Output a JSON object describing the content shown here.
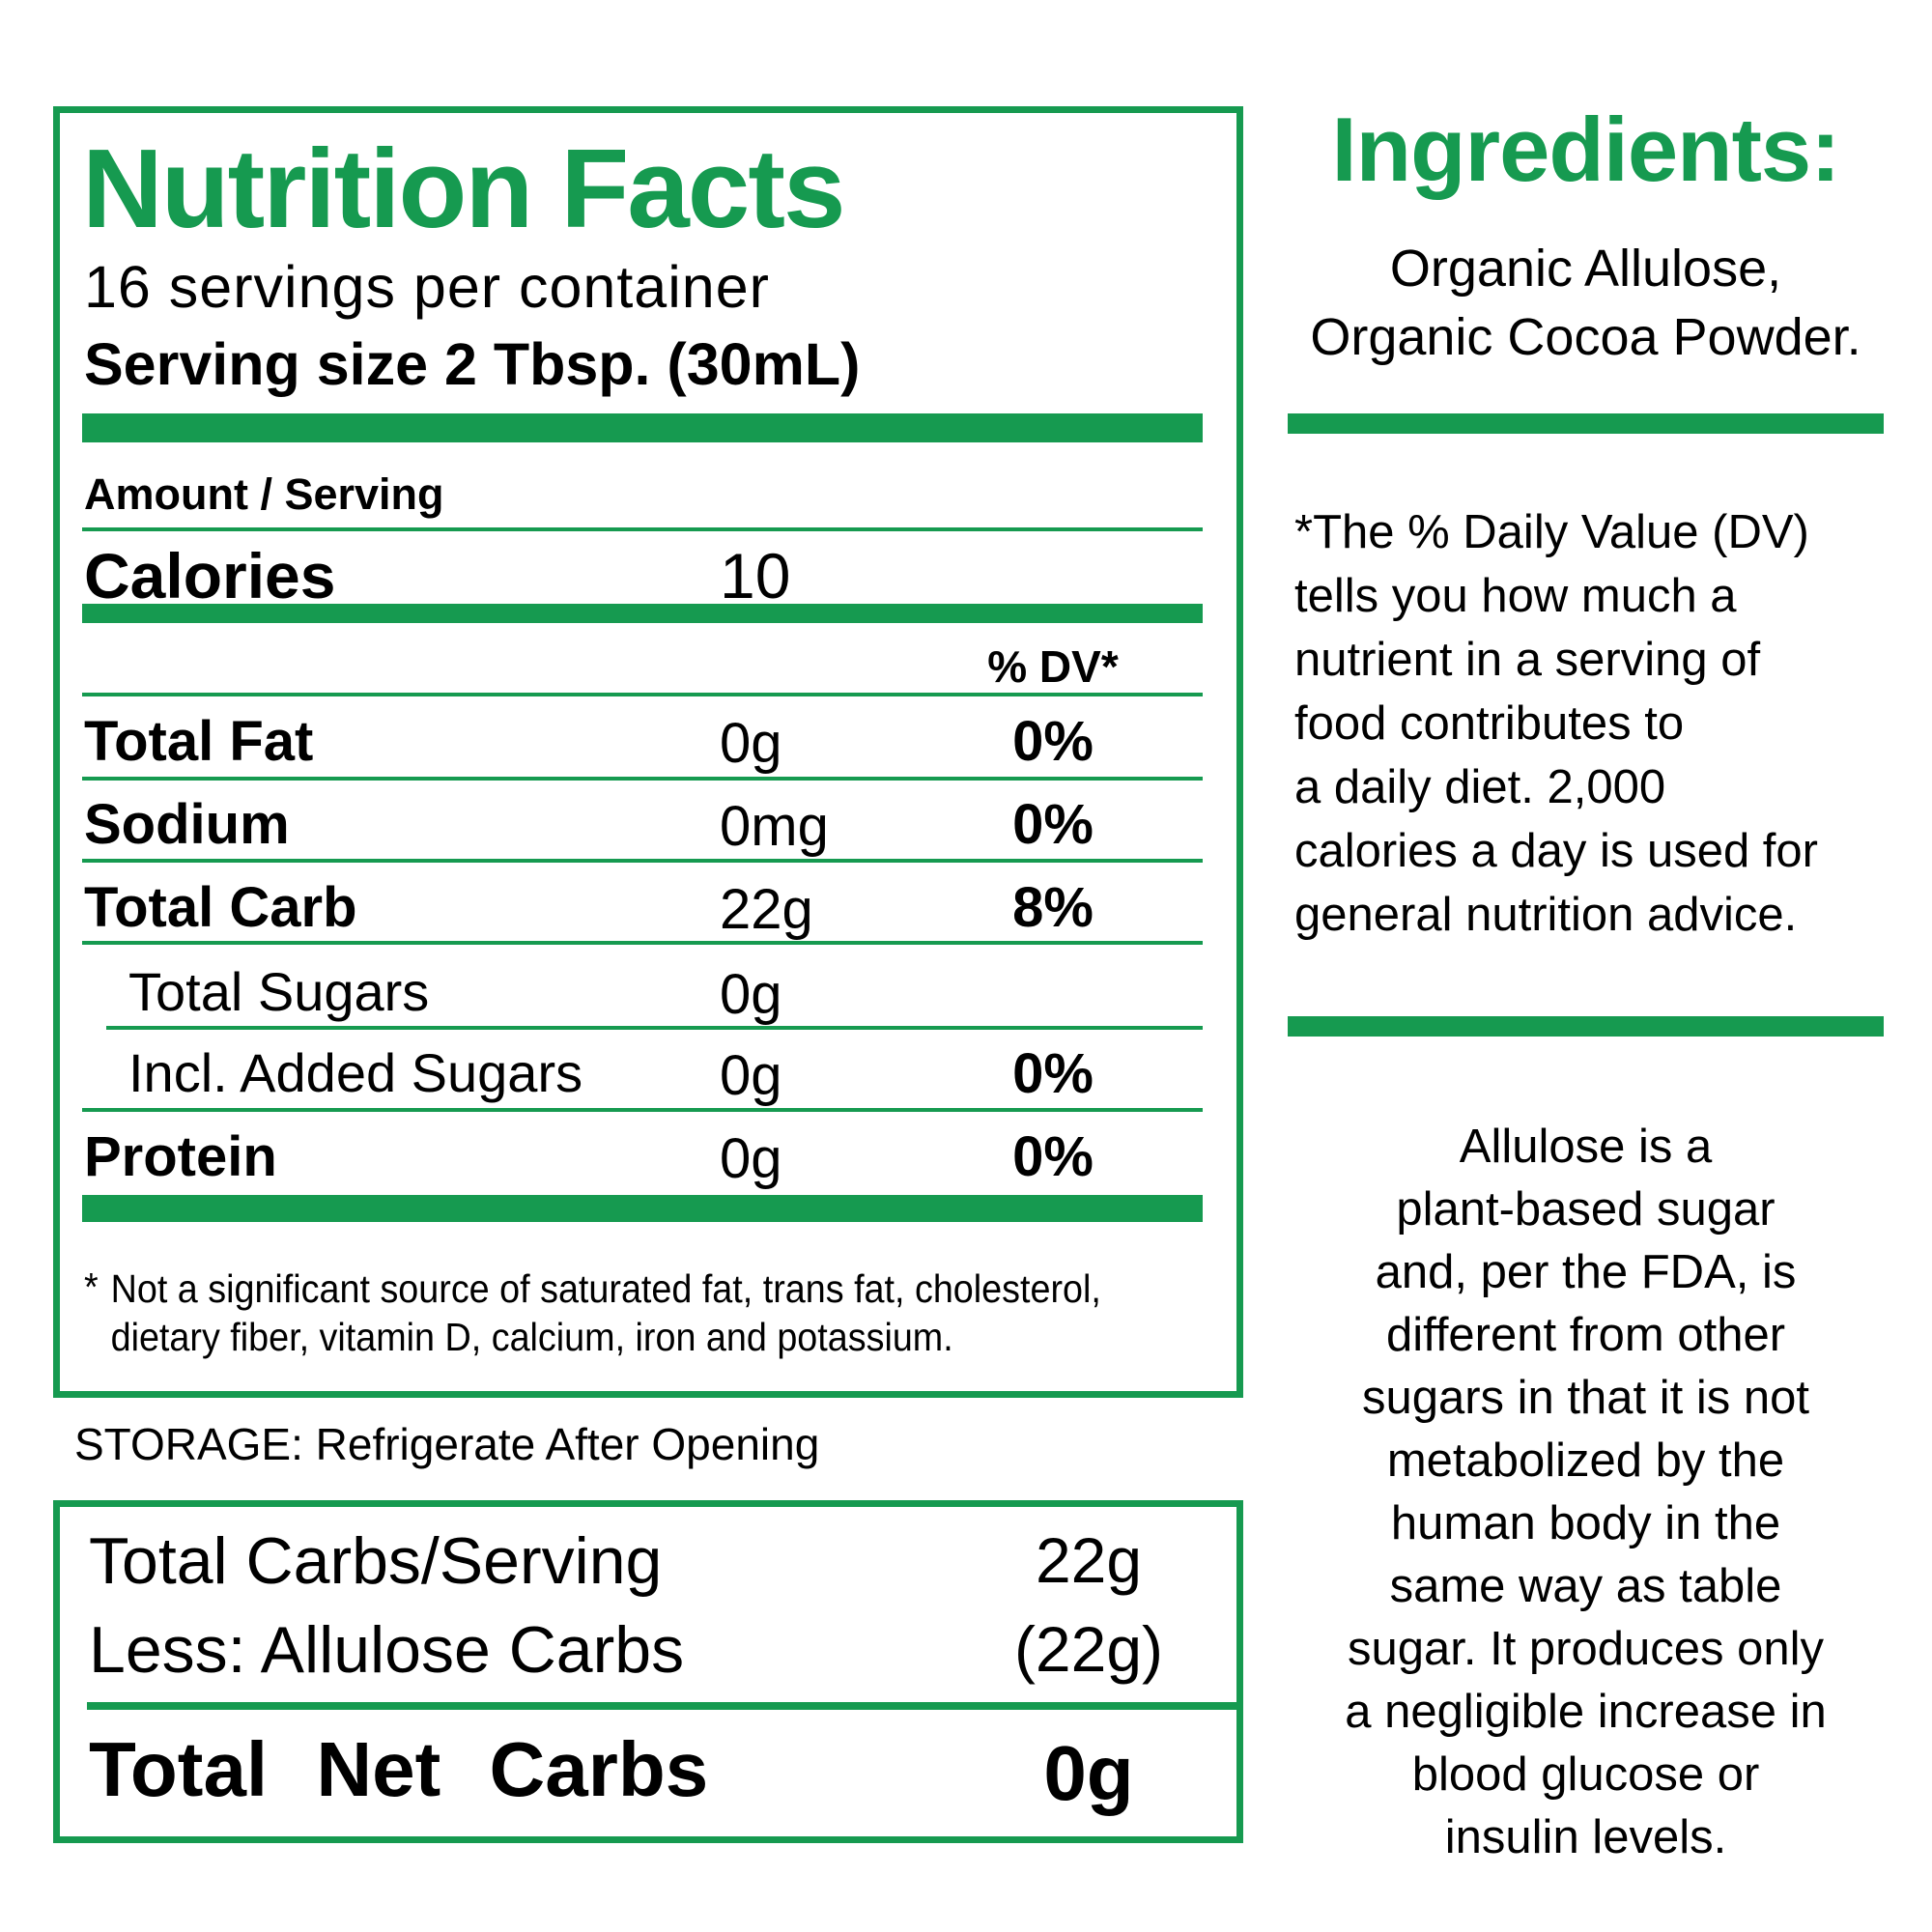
{
  "colors": {
    "green": "#169A50",
    "text": "#000000",
    "background": "#FFFFFF"
  },
  "nutrition_facts": {
    "title": "Nutrition Facts",
    "servings_per_container": "16 servings per container",
    "serving_size": "Serving size 2 Tbsp. (30mL)",
    "amount_per_serving": "Amount / Serving",
    "calories": {
      "label": "Calories",
      "value": "10"
    },
    "dv_header": "% DV*",
    "rows": [
      {
        "label": "Total Fat",
        "amount": "0g",
        "dv": "0%"
      },
      {
        "label": "Sodium",
        "amount": "0mg",
        "dv": "0%"
      },
      {
        "label": "Total Carb",
        "amount": "22g",
        "dv": "8%"
      },
      {
        "label": "Total Sugars",
        "amount": "0g",
        "dv": ""
      },
      {
        "label": "Incl. Added Sugars",
        "amount": "0g",
        "dv": "0%"
      },
      {
        "label": "Protein",
        "amount": "0g",
        "dv": "0%"
      }
    ],
    "footnote_marker": "*",
    "footnote": "Not a significant source of saturated fat, trans fat, cholesterol,\ndietary fiber, vitamin D, calcium, iron and potassium."
  },
  "storage_note": "STORAGE: Refrigerate After Opening",
  "net_carbs": {
    "rows": [
      {
        "label": "Total Carbs/Serving",
        "value": "22g"
      },
      {
        "label": "Less: Allulose Carbs",
        "value": "(22g)"
      }
    ],
    "total": {
      "label": "Total Net Carbs",
      "value": "0g"
    }
  },
  "ingredients": {
    "heading": "Ingredients:",
    "list": "Organic Allulose,\nOrganic Cocoa Powder."
  },
  "daily_value_note": "*The % Daily Value (DV)\ntells you how much a\nnutrient in a serving of\nfood contributes to\na daily diet. 2,000\ncalories a day is used for\ngeneral nutrition advice.",
  "allulose_note": "Allulose is a\nplant-based sugar\nand, per the FDA, is\ndifferent from other\nsugars in that it is not\nmetabolized by the\nhuman body in the\nsame way as table\nsugar. It produces only\na negligible increase in\nblood glucose or\ninsulin levels."
}
